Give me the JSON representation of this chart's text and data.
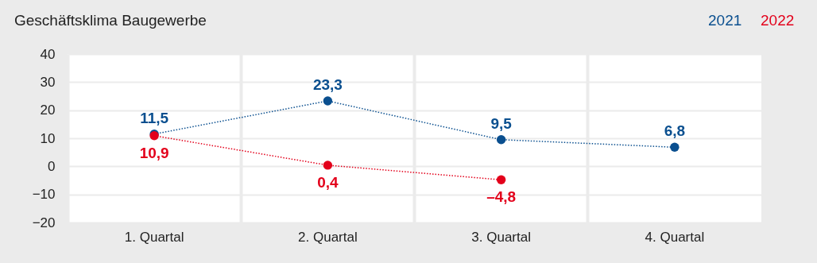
{
  "chart_data": {
    "type": "line",
    "title": "Geschäftsklima Baugewerbe",
    "categories": [
      "1. Quartal",
      "2. Quartal",
      "3. Quartal",
      "4. Quartal"
    ],
    "series": [
      {
        "name": "2021",
        "color": "#0a4f8f",
        "values": [
          11.5,
          23.3,
          9.5,
          6.8
        ],
        "value_labels": [
          "11,5",
          "23,3",
          "9,5",
          "6,8"
        ]
      },
      {
        "name": "2022",
        "color": "#e3001b",
        "values": [
          10.9,
          0.4,
          -4.8,
          null
        ],
        "value_labels": [
          "10,9",
          "0,4",
          "–4,8",
          null
        ]
      }
    ],
    "ylim": [
      -20,
      40
    ],
    "yticks": [
      -20,
      -10,
      0,
      10,
      20,
      30,
      40
    ],
    "grid": true,
    "legend": "top right",
    "marker": "circle",
    "line_style": "dotted"
  }
}
